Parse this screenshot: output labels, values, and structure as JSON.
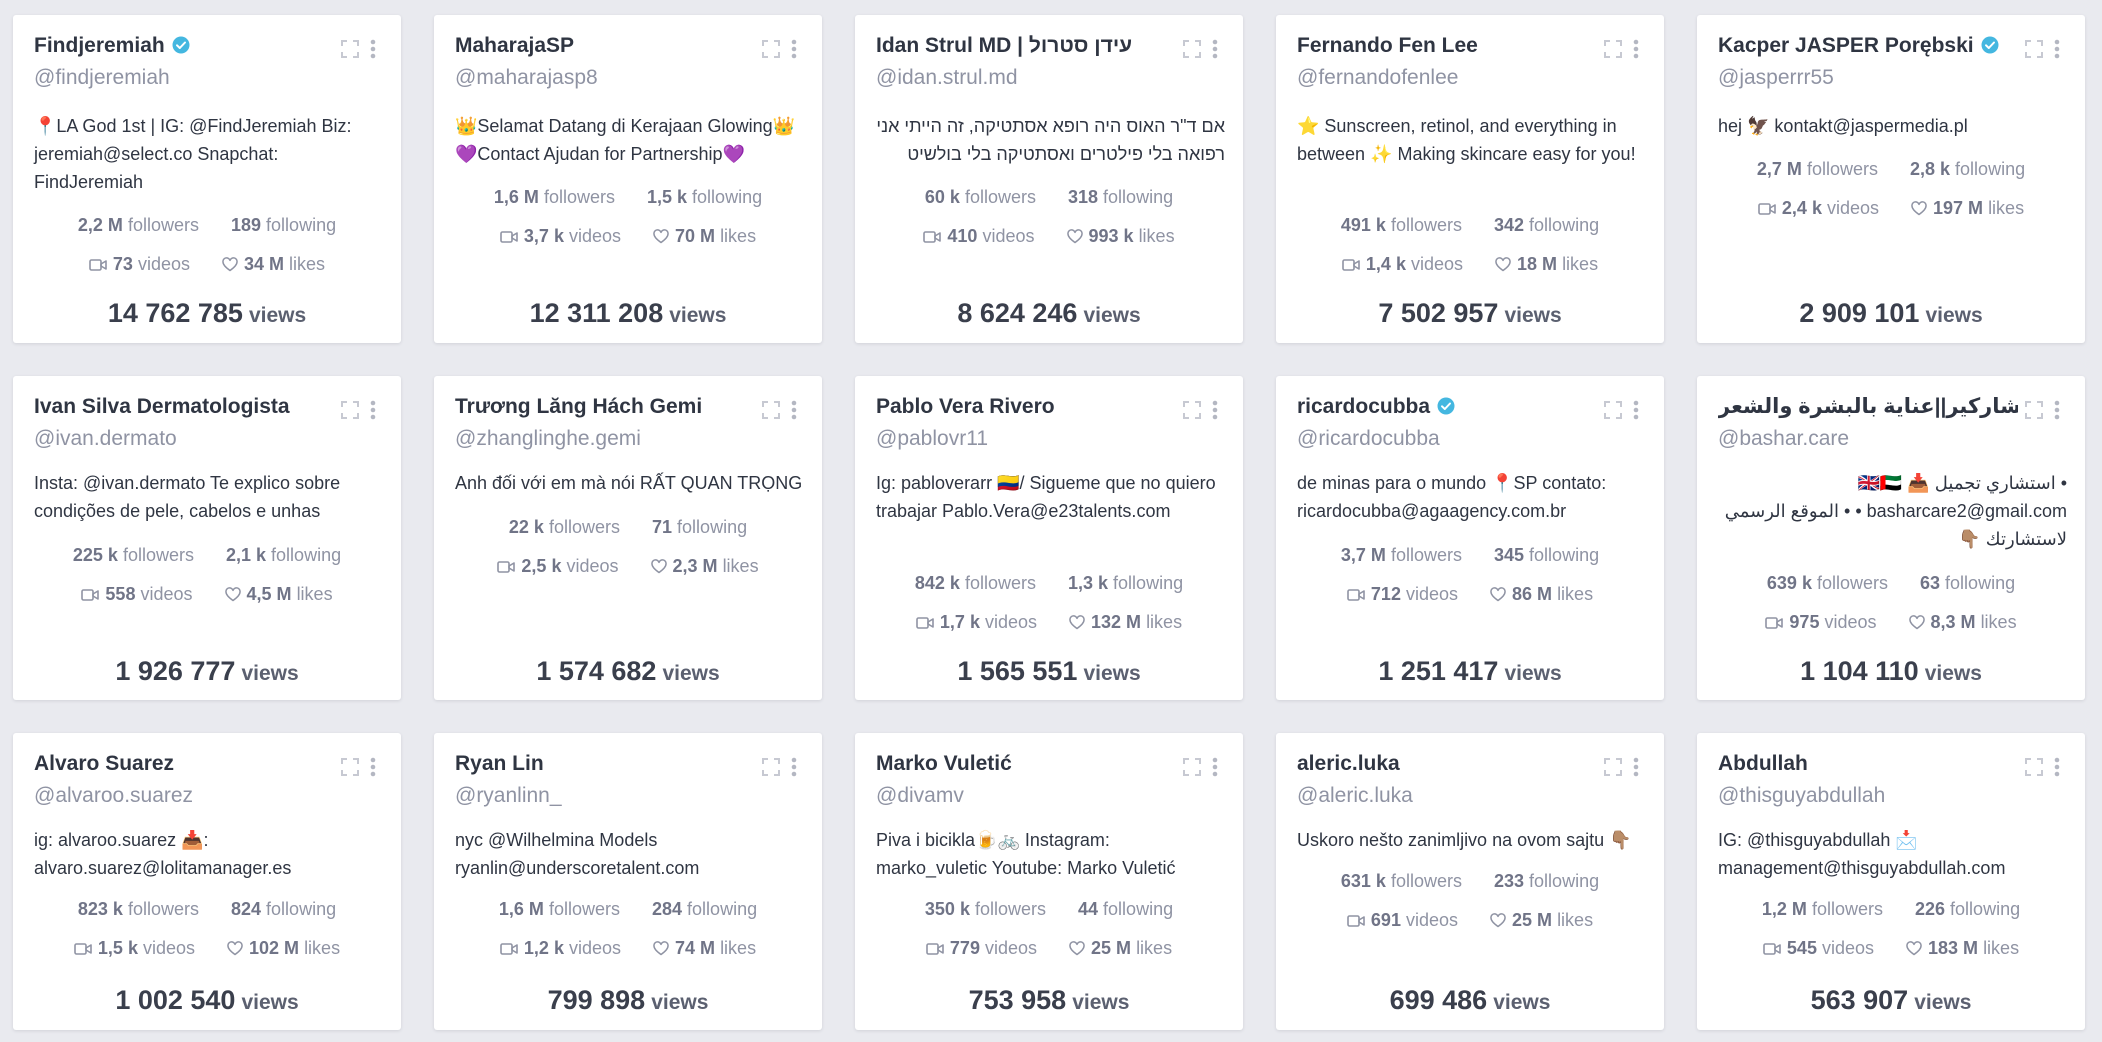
{
  "cards": [
    {
      "name": "Findjeremiah",
      "verified": true,
      "handle": "@findjeremiah",
      "bio": "📍LA God 1st | IG: @FindJeremiah Biz: jeremiah@select.co Snapchat: FindJeremiah",
      "followers": "2,2 M",
      "following": "189",
      "videos": "73",
      "likes": "34 M",
      "views": "14 762 785"
    },
    {
      "name": "MaharajaSP",
      "verified": false,
      "handle": "@maharajasp8",
      "bio": "👑Selamat Datang di Kerajaan Glowing👑 💜Contact Ajudan for Partnership💜",
      "followers": "1,6 M",
      "following": "1,5 k",
      "videos": "3,7 k",
      "likes": "70 M",
      "views": "12 311 208"
    },
    {
      "name": "Idan Strul MD | עידן סטרול",
      "verified": false,
      "handle": "@idan.strul.md",
      "bio": "אם ד\"ר האוס היה רופא אסתטיקה, זה הייתי אני רפואה בלי פילטרים ואסתטיקה בלי בולשיט",
      "followers": "60 k",
      "following": "318",
      "videos": "410",
      "likes": "993 k",
      "views": "8 624 246"
    },
    {
      "name": "Fernando Fen Lee",
      "verified": false,
      "handle": "@fernandofenlee",
      "bio": "⭐ Sunscreen, retinol, and everything in between ✨ Making skincare easy for you!",
      "followers": "491 k",
      "following": "342",
      "videos": "1,4 k",
      "likes": "18 M",
      "views": "7 502 957"
    },
    {
      "name": "Kacper JASPER Porębski",
      "verified": true,
      "handle": "@jasperrr55",
      "bio": "hej 🦅 kontakt@jaspermedia.pl",
      "followers": "2,7 M",
      "following": "2,8 k",
      "videos": "2,4 k",
      "likes": "197 M",
      "views": "2 909 101"
    },
    {
      "name": "Ivan Silva Dermatologista",
      "verified": false,
      "handle": "@ivan.dermato",
      "bio": "Insta: @ivan.dermato Te explico sobre condições de pele, cabelos e unhas",
      "followers": "225 k",
      "following": "2,1 k",
      "videos": "558",
      "likes": "4,5 M",
      "views": "1 926 777"
    },
    {
      "name": "Trương Lăng Hách Gemi",
      "verified": false,
      "handle": "@zhanglinghe.gemi",
      "bio": "Anh đối với em mà nói RẤT QUAN TRỌNG",
      "followers": "22 k",
      "following": "71",
      "videos": "2,5 k",
      "likes": "2,3 M",
      "views": "1 574 682"
    },
    {
      "name": "Pablo Vera Rivero",
      "verified": false,
      "handle": "@pablovr11",
      "bio": "Ig: pabloverarr 🇨🇴/ Sigueme que no quiero trabajar Pablo.Vera@e23talents.com",
      "followers": "842 k",
      "following": "1,3 k",
      "videos": "1,7 k",
      "likes": "132 M",
      "views": "1 565 551"
    },
    {
      "name": "ricardocubba",
      "verified": true,
      "handle": "@ricardocubba",
      "bio": "de minas para o mundo 📍SP contato: ricardocubba@agaagency.com.br",
      "followers": "3,7 M",
      "following": "345",
      "videos": "712",
      "likes": "86 M",
      "views": "1 251 417"
    },
    {
      "name": "بشاركير||عناية بالبشرة والشعر✨",
      "verified": false,
      "handle": "@bashar.care",
      "bio": "• استشاري تجميل 🇬🇧🇦🇪 📥 basharcare2@gmail.com • • الموقع الرسمي لاستشارتك 👇🏽",
      "followers": "639 k",
      "following": "63",
      "videos": "975",
      "likes": "8,3 M",
      "views": "1 104 110"
    },
    {
      "name": "Alvaro Suarez",
      "verified": false,
      "handle": "@alvaroo.suarez",
      "bio": "ig: alvaroo.suarez 📥: alvaro.suarez@lolitamanager.es",
      "followers": "823 k",
      "following": "824",
      "videos": "1,5 k",
      "likes": "102 M",
      "views": "1 002 540"
    },
    {
      "name": "Ryan Lin",
      "verified": false,
      "handle": "@ryanlinn_",
      "bio": "nyc @Wilhelmina Models ryanlin@underscoretalent.com",
      "followers": "1,6 M",
      "following": "284",
      "videos": "1,2 k",
      "likes": "74 M",
      "views": "799 898"
    },
    {
      "name": "Marko Vuletić",
      "verified": false,
      "handle": "@divamv",
      "bio": "Piva i bicikla🍺🚲 Instagram: marko_vuletic Youtube: Marko Vuletić",
      "followers": "350 k",
      "following": "44",
      "videos": "779",
      "likes": "25 M",
      "views": "753 958"
    },
    {
      "name": "aleric.luka",
      "verified": false,
      "handle": "@aleric.luka",
      "bio": "Uskoro nešto zanimljivo na ovom sajtu 👇🏽",
      "followers": "631 k",
      "following": "233",
      "videos": "691",
      "likes": "25 M",
      "views": "699 486"
    },
    {
      "name": "Abdullah",
      "verified": false,
      "handle": "@thisguyabdullah",
      "bio": "IG: @thisguyabdullah 📩 management@thisguyabdullah.com",
      "followers": "1,2 M",
      "following": "226",
      "videos": "545",
      "likes": "183 M",
      "views": "563 907"
    }
  ],
  "labels": {
    "followers": "followers",
    "following": "following",
    "videos": "videos",
    "likes": "likes",
    "views": "views"
  },
  "colors": {
    "verified": "#44b7e0",
    "muted": "#8f93a3",
    "text": "#2f3542",
    "background": "#e9eaef"
  },
  "icons": {
    "verified": "verified-badge-icon",
    "expand": "expand-icon",
    "more": "more-vertical-icon",
    "videos": "video-camera-icon",
    "likes": "heart-icon"
  }
}
